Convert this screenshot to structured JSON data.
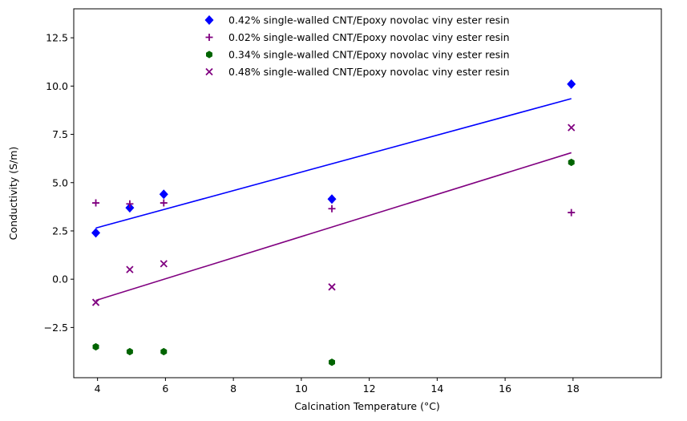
{
  "chart_data": {
    "type": "scatter",
    "xlabel": "Calcination Temperature (°C)",
    "ylabel": "Conductivity (S/m)",
    "xlim": [
      3.3,
      20.6
    ],
    "ylim": [
      -5.1,
      14.0
    ],
    "x_ticks": [
      4,
      6,
      8,
      10,
      12,
      14,
      16,
      18
    ],
    "y_ticks": [
      -2.5,
      0.0,
      2.5,
      5.0,
      7.5,
      10.0,
      12.5
    ],
    "x_tick_labels": [
      "4",
      "6",
      "8",
      "10",
      "12",
      "14",
      "16",
      "18"
    ],
    "y_tick_labels": [
      "−2.5",
      "0.0",
      "2.5",
      "5.0",
      "7.5",
      "10.0",
      "12.5"
    ],
    "grid": false,
    "legend_position": "upper-center",
    "series": [
      {
        "name": "0.42% single-walled CNT/Epoxy novolac viny ester resin",
        "marker": "diamond",
        "color": "#0000ff",
        "points": [
          [
            3.95,
            2.4
          ],
          [
            4.95,
            3.7
          ],
          [
            5.95,
            4.4
          ],
          [
            10.9,
            4.15
          ],
          [
            17.95,
            10.1
          ]
        ]
      },
      {
        "name": "0.02% single-walled CNT/Epoxy novolac viny ester resin",
        "marker": "plus",
        "color": "#800080",
        "points": [
          [
            3.95,
            3.95
          ],
          [
            4.95,
            3.9
          ],
          [
            5.95,
            3.95
          ],
          [
            10.9,
            3.65
          ],
          [
            17.95,
            3.45
          ]
        ]
      },
      {
        "name": "0.34% single-walled CNT/Epoxy novolac viny ester resin",
        "marker": "hexagon",
        "color": "#006400",
        "points": [
          [
            3.95,
            -3.5
          ],
          [
            4.95,
            -3.75
          ],
          [
            5.95,
            -3.75
          ],
          [
            10.9,
            -4.3
          ],
          [
            17.95,
            6.05
          ]
        ]
      },
      {
        "name": "0.48% single-walled CNT/Epoxy novolac viny ester resin",
        "marker": "x",
        "color": "#800080",
        "points": [
          [
            3.95,
            -1.2
          ],
          [
            4.95,
            0.5
          ],
          [
            5.95,
            0.8
          ],
          [
            10.9,
            -0.4
          ],
          [
            17.95,
            7.85
          ]
        ]
      }
    ],
    "trend_lines": [
      {
        "color": "#0000ff",
        "points": [
          [
            3.95,
            2.65
          ],
          [
            17.95,
            9.35
          ]
        ]
      },
      {
        "color": "#800080",
        "points": [
          [
            3.95,
            -1.1
          ],
          [
            17.95,
            6.55
          ]
        ]
      }
    ]
  }
}
